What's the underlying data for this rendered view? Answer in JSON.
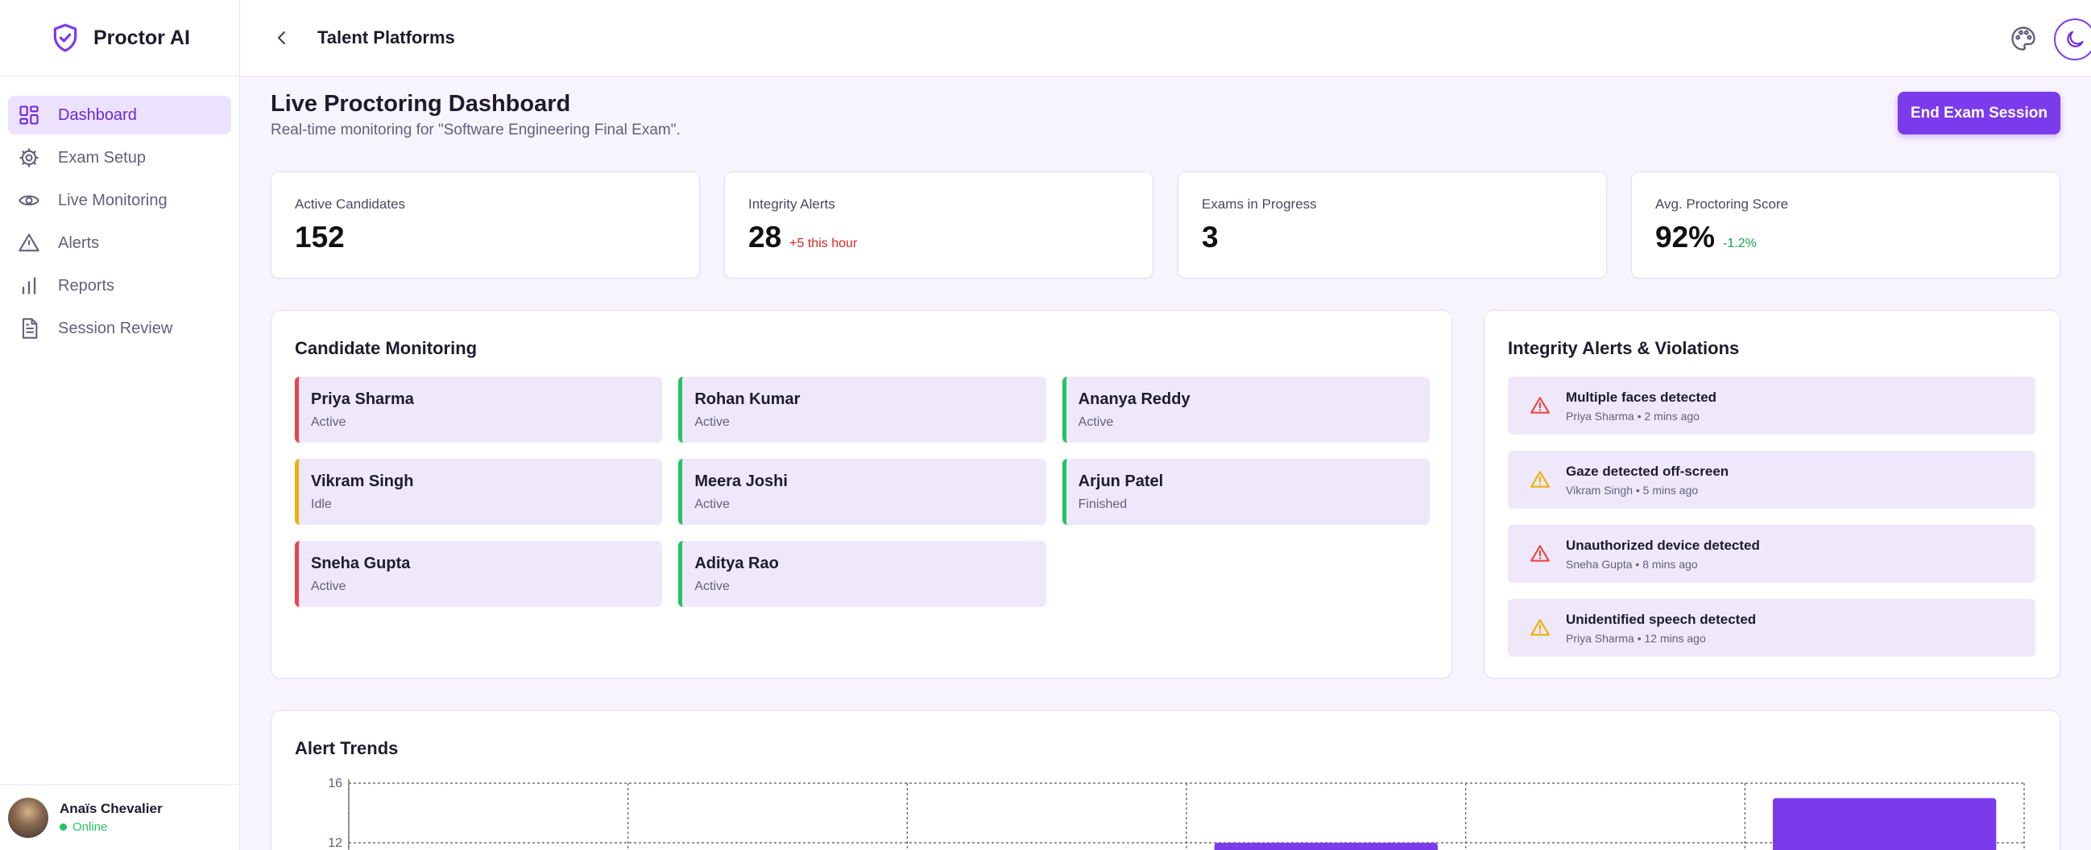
{
  "sidebar": {
    "brand": "Proctor AI",
    "items": [
      {
        "label": "Dashboard",
        "icon": "dashboard-icon",
        "active": true
      },
      {
        "label": "Exam Setup",
        "icon": "gear-icon",
        "active": false
      },
      {
        "label": "Live Monitoring",
        "icon": "eye-icon",
        "active": false
      },
      {
        "label": "Alerts",
        "icon": "warning-icon",
        "active": false
      },
      {
        "label": "Reports",
        "icon": "bar-chart-icon",
        "active": false
      },
      {
        "label": "Session Review",
        "icon": "document-icon",
        "active": false
      }
    ],
    "user": {
      "name": "Anaïs Chevalier",
      "status": "Online"
    }
  },
  "topbar": {
    "title": "Talent Platforms"
  },
  "header": {
    "title": "Live Proctoring Dashboard",
    "subtitle": "Real-time monitoring for \"Software Engineering Final Exam\".",
    "end_button": "End Exam Session"
  },
  "stats": [
    {
      "label": "Active Candidates",
      "value": "152",
      "delta": "",
      "delta_color": ""
    },
    {
      "label": "Integrity Alerts",
      "value": "28",
      "delta": "+5 this hour",
      "delta_color": "#dc2626"
    },
    {
      "label": "Exams in Progress",
      "value": "3",
      "delta": "",
      "delta_color": ""
    },
    {
      "label": "Avg. Proctoring Score",
      "value": "92%",
      "delta": "-1.2%",
      "delta_color": "#16a34a"
    }
  ],
  "monitoring": {
    "title": "Candidate Monitoring",
    "candidates": [
      {
        "name": "Priya Sharma",
        "status": "Active",
        "color": "#ef4444"
      },
      {
        "name": "Rohan Kumar",
        "status": "Active",
        "color": "#22c55e"
      },
      {
        "name": "Ananya Reddy",
        "status": "Active",
        "color": "#22c55e"
      },
      {
        "name": "Vikram Singh",
        "status": "Idle",
        "color": "#eab308"
      },
      {
        "name": "Meera Joshi",
        "status": "Active",
        "color": "#22c55e"
      },
      {
        "name": "Arjun Patel",
        "status": "Finished",
        "color": "#22c55e"
      },
      {
        "name": "Sneha Gupta",
        "status": "Active",
        "color": "#ef4444"
      },
      {
        "name": "Aditya Rao",
        "status": "Active",
        "color": "#22c55e"
      }
    ]
  },
  "alerts": {
    "title": "Integrity Alerts & Violations",
    "items": [
      {
        "title": "Multiple faces detected",
        "meta": "Priya Sharma • 2 mins ago",
        "severity": "high",
        "color": "#ef4444"
      },
      {
        "title": "Gaze detected off-screen",
        "meta": "Vikram Singh • 5 mins ago",
        "severity": "medium",
        "color": "#eab308"
      },
      {
        "title": "Unauthorized device detected",
        "meta": "Sneha Gupta • 8 mins ago",
        "severity": "high",
        "color": "#ef4444"
      },
      {
        "title": "Unidentified speech detected",
        "meta": "Priya Sharma • 12 mins ago",
        "severity": "medium",
        "color": "#eab308"
      }
    ]
  },
  "trends": {
    "title": "Alert Trends"
  },
  "chart_data": {
    "type": "bar",
    "title": "Alert Trends",
    "y_ticks": [
      "16",
      "12"
    ],
    "ylim": [
      0,
      16
    ],
    "bar_color": "#7c3aed",
    "categories": [
      "",
      "",
      "",
      "",
      "",
      ""
    ],
    "values": [
      0,
      0,
      0,
      12,
      0,
      15
    ],
    "grid": true
  },
  "colors": {
    "accent": "#7c3aed",
    "accent_light": "#ece2fd"
  }
}
